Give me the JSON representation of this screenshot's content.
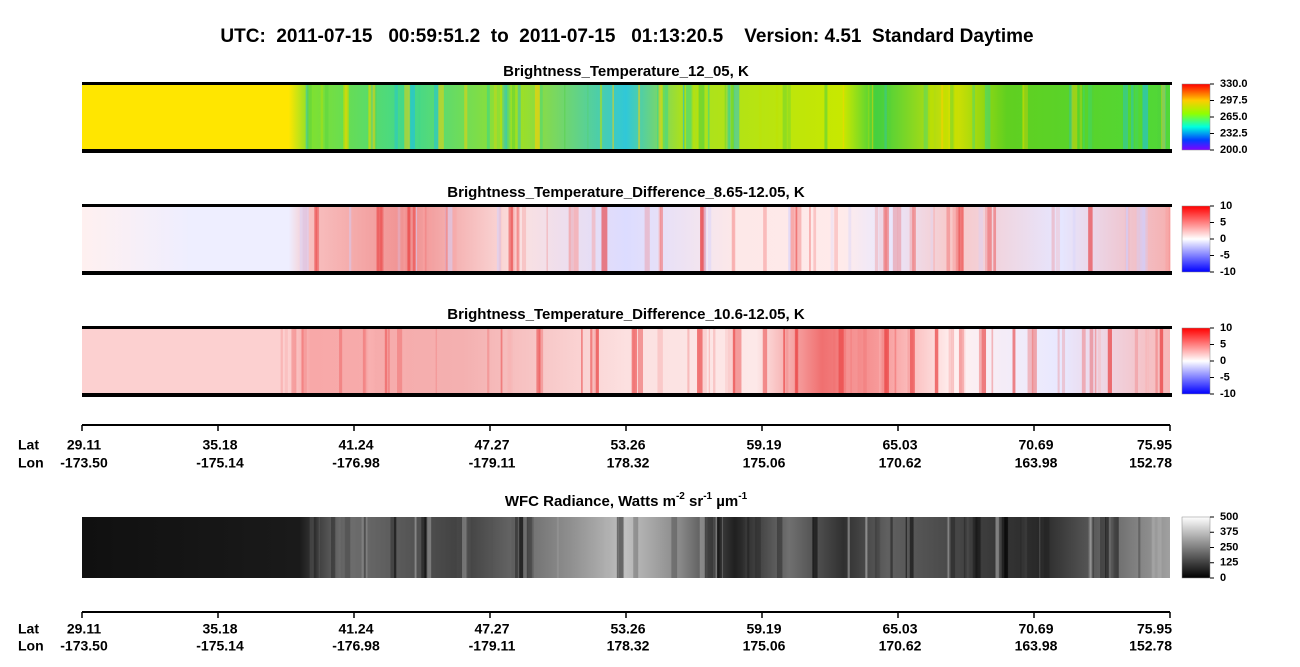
{
  "header": {
    "title": "UTC:  2011-07-15   00:59:51.2  to  2011-07-15   01:13:20.5    Version: 4.51  Standard Daytime"
  },
  "panels": [
    {
      "title": "Brightness_Temperature_12_05, K",
      "colorbar": [
        "330.0",
        "297.5",
        "265.0",
        "232.5",
        "200.0"
      ]
    },
    {
      "title": "Brightness_Temperature_Difference_8.65-12.05, K",
      "colorbar": [
        "10",
        "5",
        "0",
        "-5",
        "-10"
      ]
    },
    {
      "title": "Brightness_Temperature_Difference_10.6-12.05, K",
      "colorbar": [
        "10",
        "5",
        "0",
        "-5",
        "-10"
      ]
    },
    {
      "title": [
        "WFC Radiance, Watts m",
        "-2",
        " sr",
        "-1",
        " µm",
        "-1"
      ],
      "colorbar": [
        "500",
        "375",
        "250",
        "125",
        "0"
      ]
    }
  ],
  "axis": {
    "lat_label": "Lat",
    "lon_label": "Lon",
    "lat": [
      "29.11",
      "35.18",
      "41.24",
      "47.27",
      "53.26",
      "59.19",
      "65.03",
      "70.69",
      "75.95"
    ],
    "lon": [
      "-173.50",
      "-175.14",
      "-176.98",
      "-179.11",
      "178.32",
      "175.06",
      "170.62",
      "163.98",
      "152.78"
    ]
  }
}
